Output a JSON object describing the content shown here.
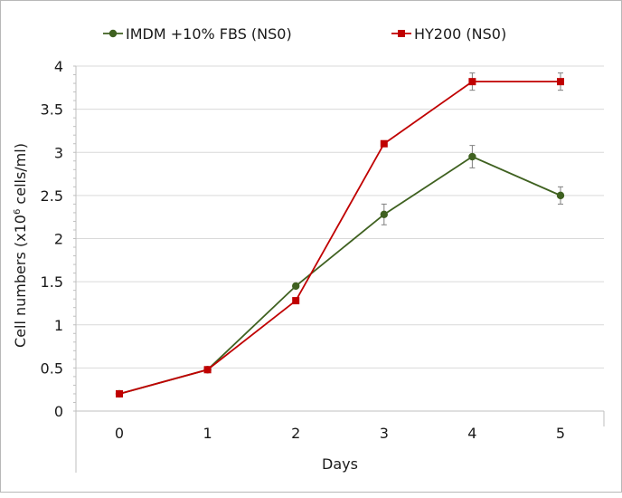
{
  "chart_data": {
    "type": "line",
    "title": "",
    "xlabel": "Days",
    "ylabel_parts": [
      "Cell numbers (x10",
      "6",
      " cells/ml)"
    ],
    "xlim": [
      0,
      5
    ],
    "ylim": [
      0,
      4
    ],
    "x_ticks": [
      "0",
      "1",
      "2",
      "3",
      "4",
      "5"
    ],
    "y_ticks": [
      "0",
      "0.5",
      "1",
      "1.5",
      "2",
      "2.5",
      "3",
      "3.5",
      "4"
    ],
    "grid": "horizontal",
    "legend_position": "top",
    "series": [
      {
        "name": "IMDM +10% FBS (NS0)",
        "color": "#3f6120",
        "marker": "circle",
        "x": [
          0,
          1,
          2,
          3,
          4,
          5
        ],
        "values": [
          0.2,
          0.48,
          1.45,
          2.28,
          2.95,
          2.5
        ],
        "error": [
          0,
          0,
          0,
          0.12,
          0.13,
          0.1
        ]
      },
      {
        "name": "HY200 (NS0)",
        "color": "#c00000",
        "marker": "square",
        "x": [
          0,
          1,
          2,
          3,
          4,
          5
        ],
        "values": [
          0.2,
          0.48,
          1.28,
          3.1,
          3.82,
          3.82
        ],
        "error": [
          0,
          0,
          0,
          0,
          0.1,
          0.1
        ]
      }
    ]
  }
}
